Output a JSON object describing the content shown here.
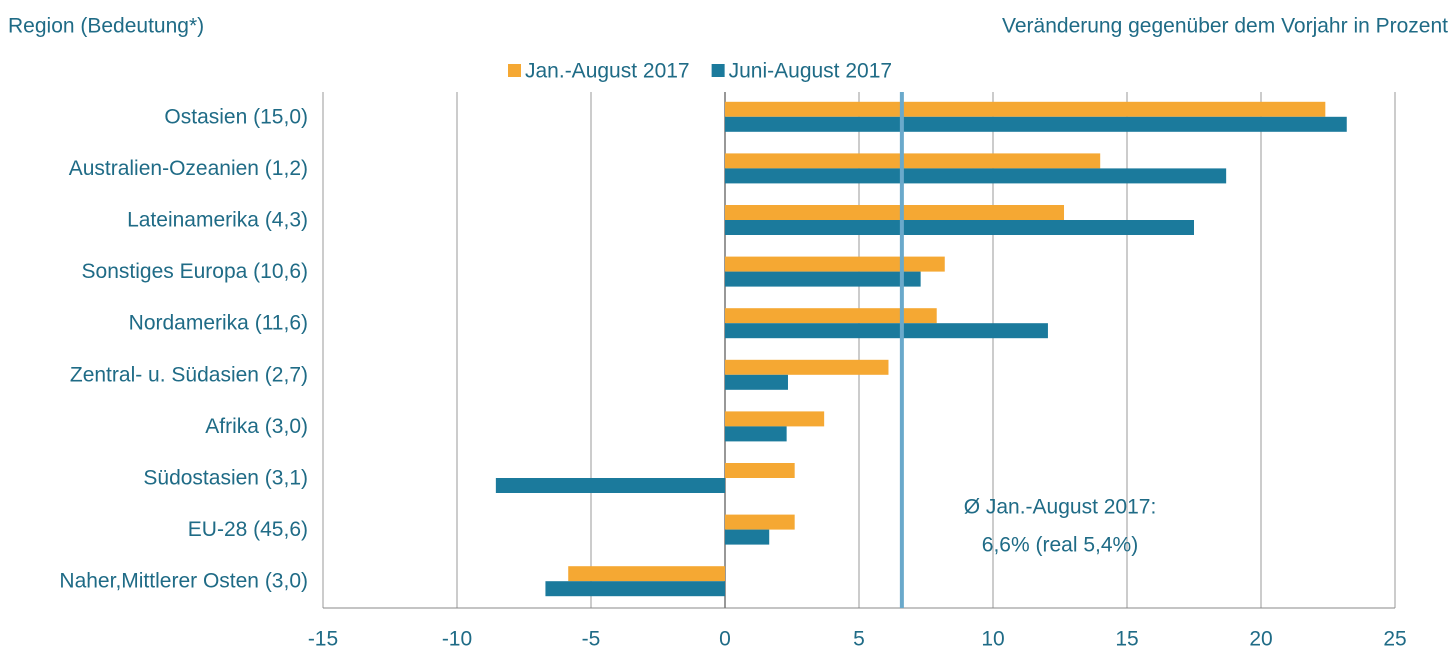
{
  "chart_data": {
    "type": "hbar",
    "title": "Region (Bedeutung*)",
    "subtitle": "Veränderung gegenüber dem Vorjahr in Prozent",
    "categories": [
      "Ostasien (15,0)",
      "Australien-Ozeanien (1,2)",
      "Lateinamerika (4,3)",
      "Sonstiges Europa (10,6)",
      "Nordamerika (11,6)",
      "Zentral- u. Südasien (2,7)",
      "Afrika (3,0)",
      "Südostasien (3,1)",
      "EU-28 (45,6)",
      "Naher,Mittlerer Osten (3,0)"
    ],
    "series": [
      {
        "name": "Jan.-August 2017",
        "color": "#f5a833",
        "values": [
          22.4,
          14.0,
          12.65,
          8.2,
          7.9,
          6.1,
          3.7,
          2.6,
          2.6,
          -5.85
        ]
      },
      {
        "name": "Juni-August 2017",
        "color": "#1b7a9c",
        "values": [
          23.2,
          18.7,
          17.5,
          7.3,
          12.05,
          2.35,
          2.3,
          -8.55,
          1.65,
          -6.7
        ]
      }
    ],
    "xlim": [
      -15,
      25
    ],
    "xticks": [
      -15,
      -10,
      -5,
      0,
      5,
      10,
      15,
      20,
      25
    ],
    "grid": true,
    "reference_value": 6.6,
    "reference_color": "#6aa9cb",
    "annotation": [
      "Ø Jan.-August 2017:",
      "6,6% (real 5,4%)"
    ]
  }
}
